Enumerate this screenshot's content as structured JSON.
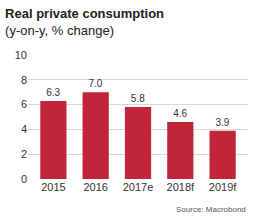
{
  "chart_data": {
    "type": "bar",
    "title": "Real private consumption",
    "subtitle": "(y-on-y, % change)",
    "source": "Source: Macrobond",
    "categories": [
      "2015",
      "2016",
      "2017e",
      "2018f",
      "2019f"
    ],
    "values": [
      6.3,
      7.0,
      5.8,
      4.6,
      3.9
    ],
    "value_labels": [
      "6.3",
      "7.0",
      "5.8",
      "4.6",
      "3.9"
    ],
    "color": "#c0253a",
    "ylim": [
      0,
      10
    ],
    "yticks": [
      0,
      2,
      4,
      6,
      8,
      10
    ],
    "grid": true,
    "data_labels": true
  }
}
